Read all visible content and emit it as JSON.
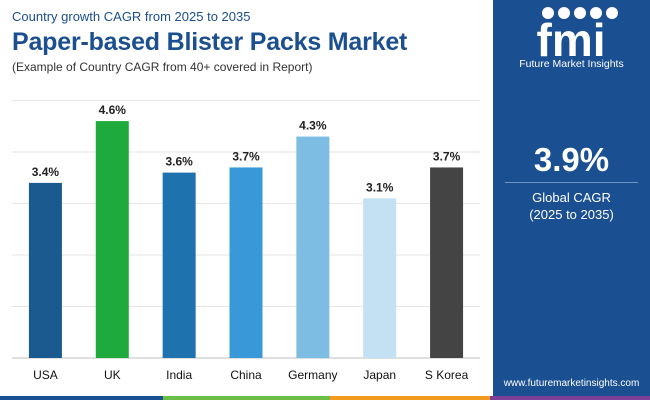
{
  "header": {
    "subtitle": "Country growth CAGR from 2025 to 2035",
    "title": "Paper-based Blister Packs Market",
    "note": "(Example of Country CAGR from 40+ covered in Report)"
  },
  "sidebar": {
    "logo_letters": "fmi",
    "logo_name": "Future Market Insights",
    "cagr_value": "3.9%",
    "cagr_label": "Global CAGR",
    "cagr_period": "(2025 to 2035)",
    "website": "www.futuremarketinsights.com",
    "background_color": "#1a4f91"
  },
  "chart_data": {
    "type": "bar",
    "categories": [
      "USA",
      "UK",
      "India",
      "China",
      "Germany",
      "Japan",
      "S Korea"
    ],
    "values": [
      3.4,
      4.6,
      3.6,
      3.7,
      4.3,
      3.1,
      3.7
    ],
    "data_labels": [
      "3.4%",
      "4.6%",
      "3.6%",
      "3.7%",
      "4.3%",
      "3.1%",
      "3.7%"
    ],
    "colors": [
      "#1a5a8f",
      "#1eaa3c",
      "#1e72ae",
      "#3898d8",
      "#7dbde3",
      "#c3e1f3",
      "#444444"
    ],
    "ylim": [
      0,
      5
    ],
    "grid": true,
    "legend": "none"
  },
  "footer_colors": [
    "#1a4f91",
    "#6cbd45",
    "#f39a1e",
    "#7b3f97"
  ]
}
